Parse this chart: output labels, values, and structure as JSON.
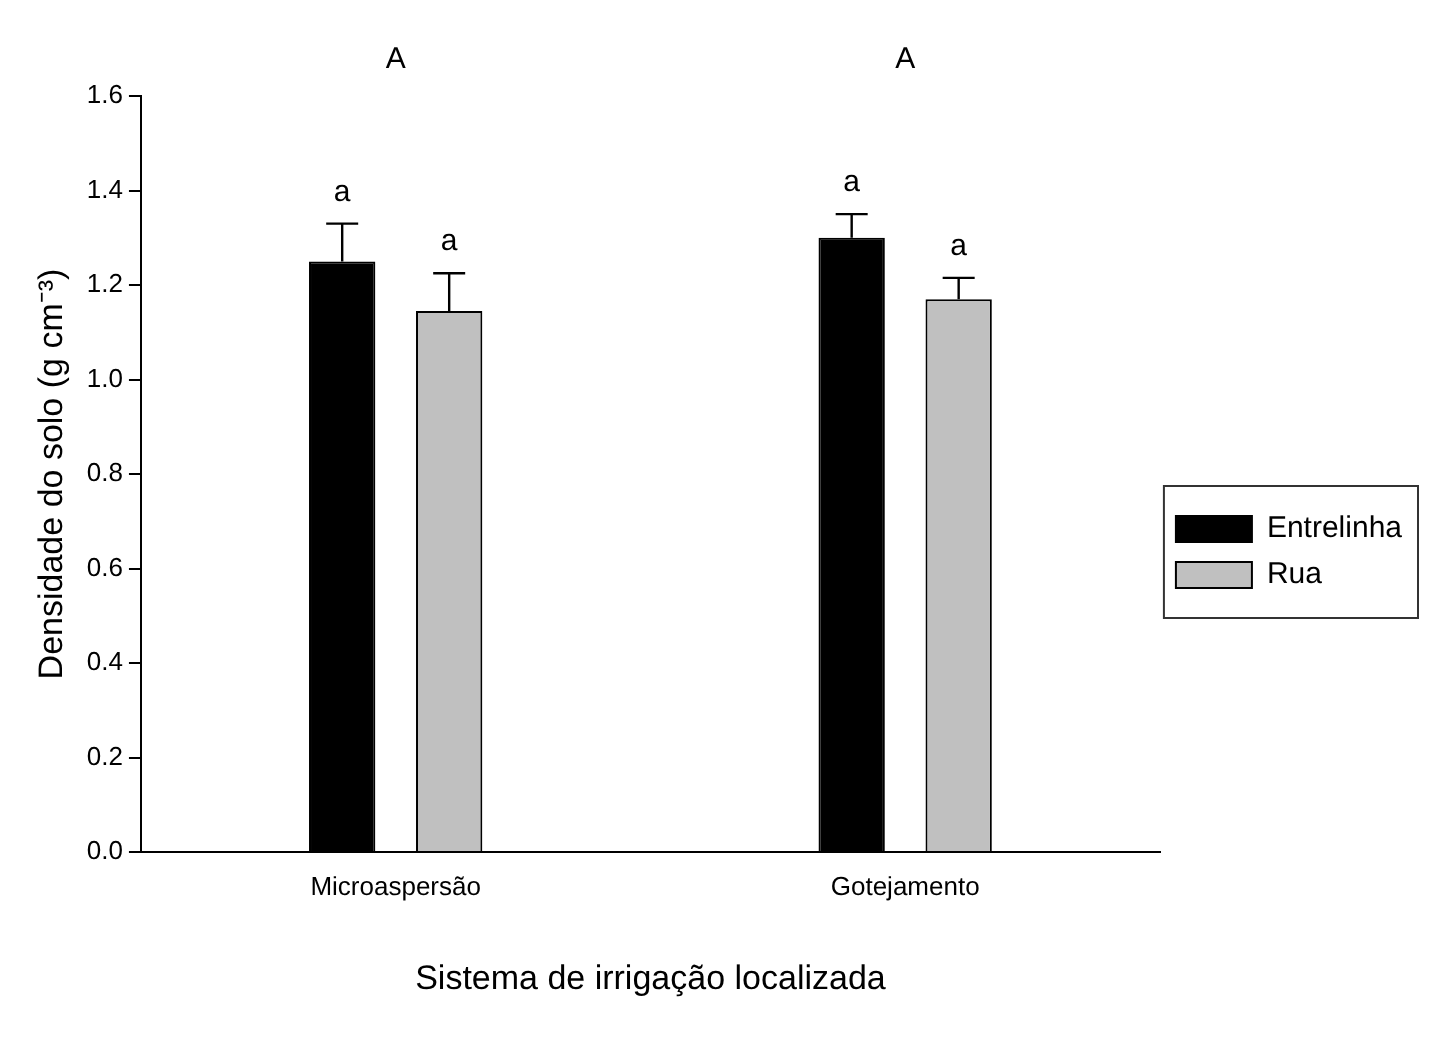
{
  "chart_data": {
    "type": "bar",
    "xlabel": "Sistema de irrigação localizada",
    "ylabel": "Densidade do solo (g cm⁻³)",
    "categories": [
      "Microaspersão",
      "Gotejamento"
    ],
    "series": [
      {
        "name": "Entrelinha",
        "color": "#000000",
        "values": [
          1.25,
          1.3
        ],
        "errors": [
          [
            1.25,
            1.33
          ],
          [
            1.3,
            1.35
          ]
        ],
        "value_labels": [
          "a",
          "a"
        ]
      },
      {
        "name": "Rua",
        "color": "#c0c0c0",
        "values": [
          1.145,
          1.17
        ],
        "errors": [
          [
            1.145,
            1.225
          ],
          [
            1.17,
            1.215
          ]
        ],
        "value_labels": [
          "a",
          "a"
        ]
      }
    ],
    "annotations": [
      "A",
      "A"
    ],
    "ylim": [
      0,
      1.6
    ],
    "yticks": [
      {
        "value": 0,
        "label": "0.0"
      },
      {
        "value": 0.2,
        "label": "0.2"
      },
      {
        "value": 0.4,
        "label": "0.4"
      },
      {
        "value": 0.6,
        "label": "0.6"
      },
      {
        "value": 0.8,
        "label": "0.8"
      },
      {
        "value": 1,
        "label": "1.0"
      },
      {
        "value": 1.2,
        "label": "1.2"
      },
      {
        "value": 1.4,
        "label": "1.4"
      },
      {
        "value": 1.6,
        "label": "1.6"
      }
    ],
    "legend": "right"
  }
}
